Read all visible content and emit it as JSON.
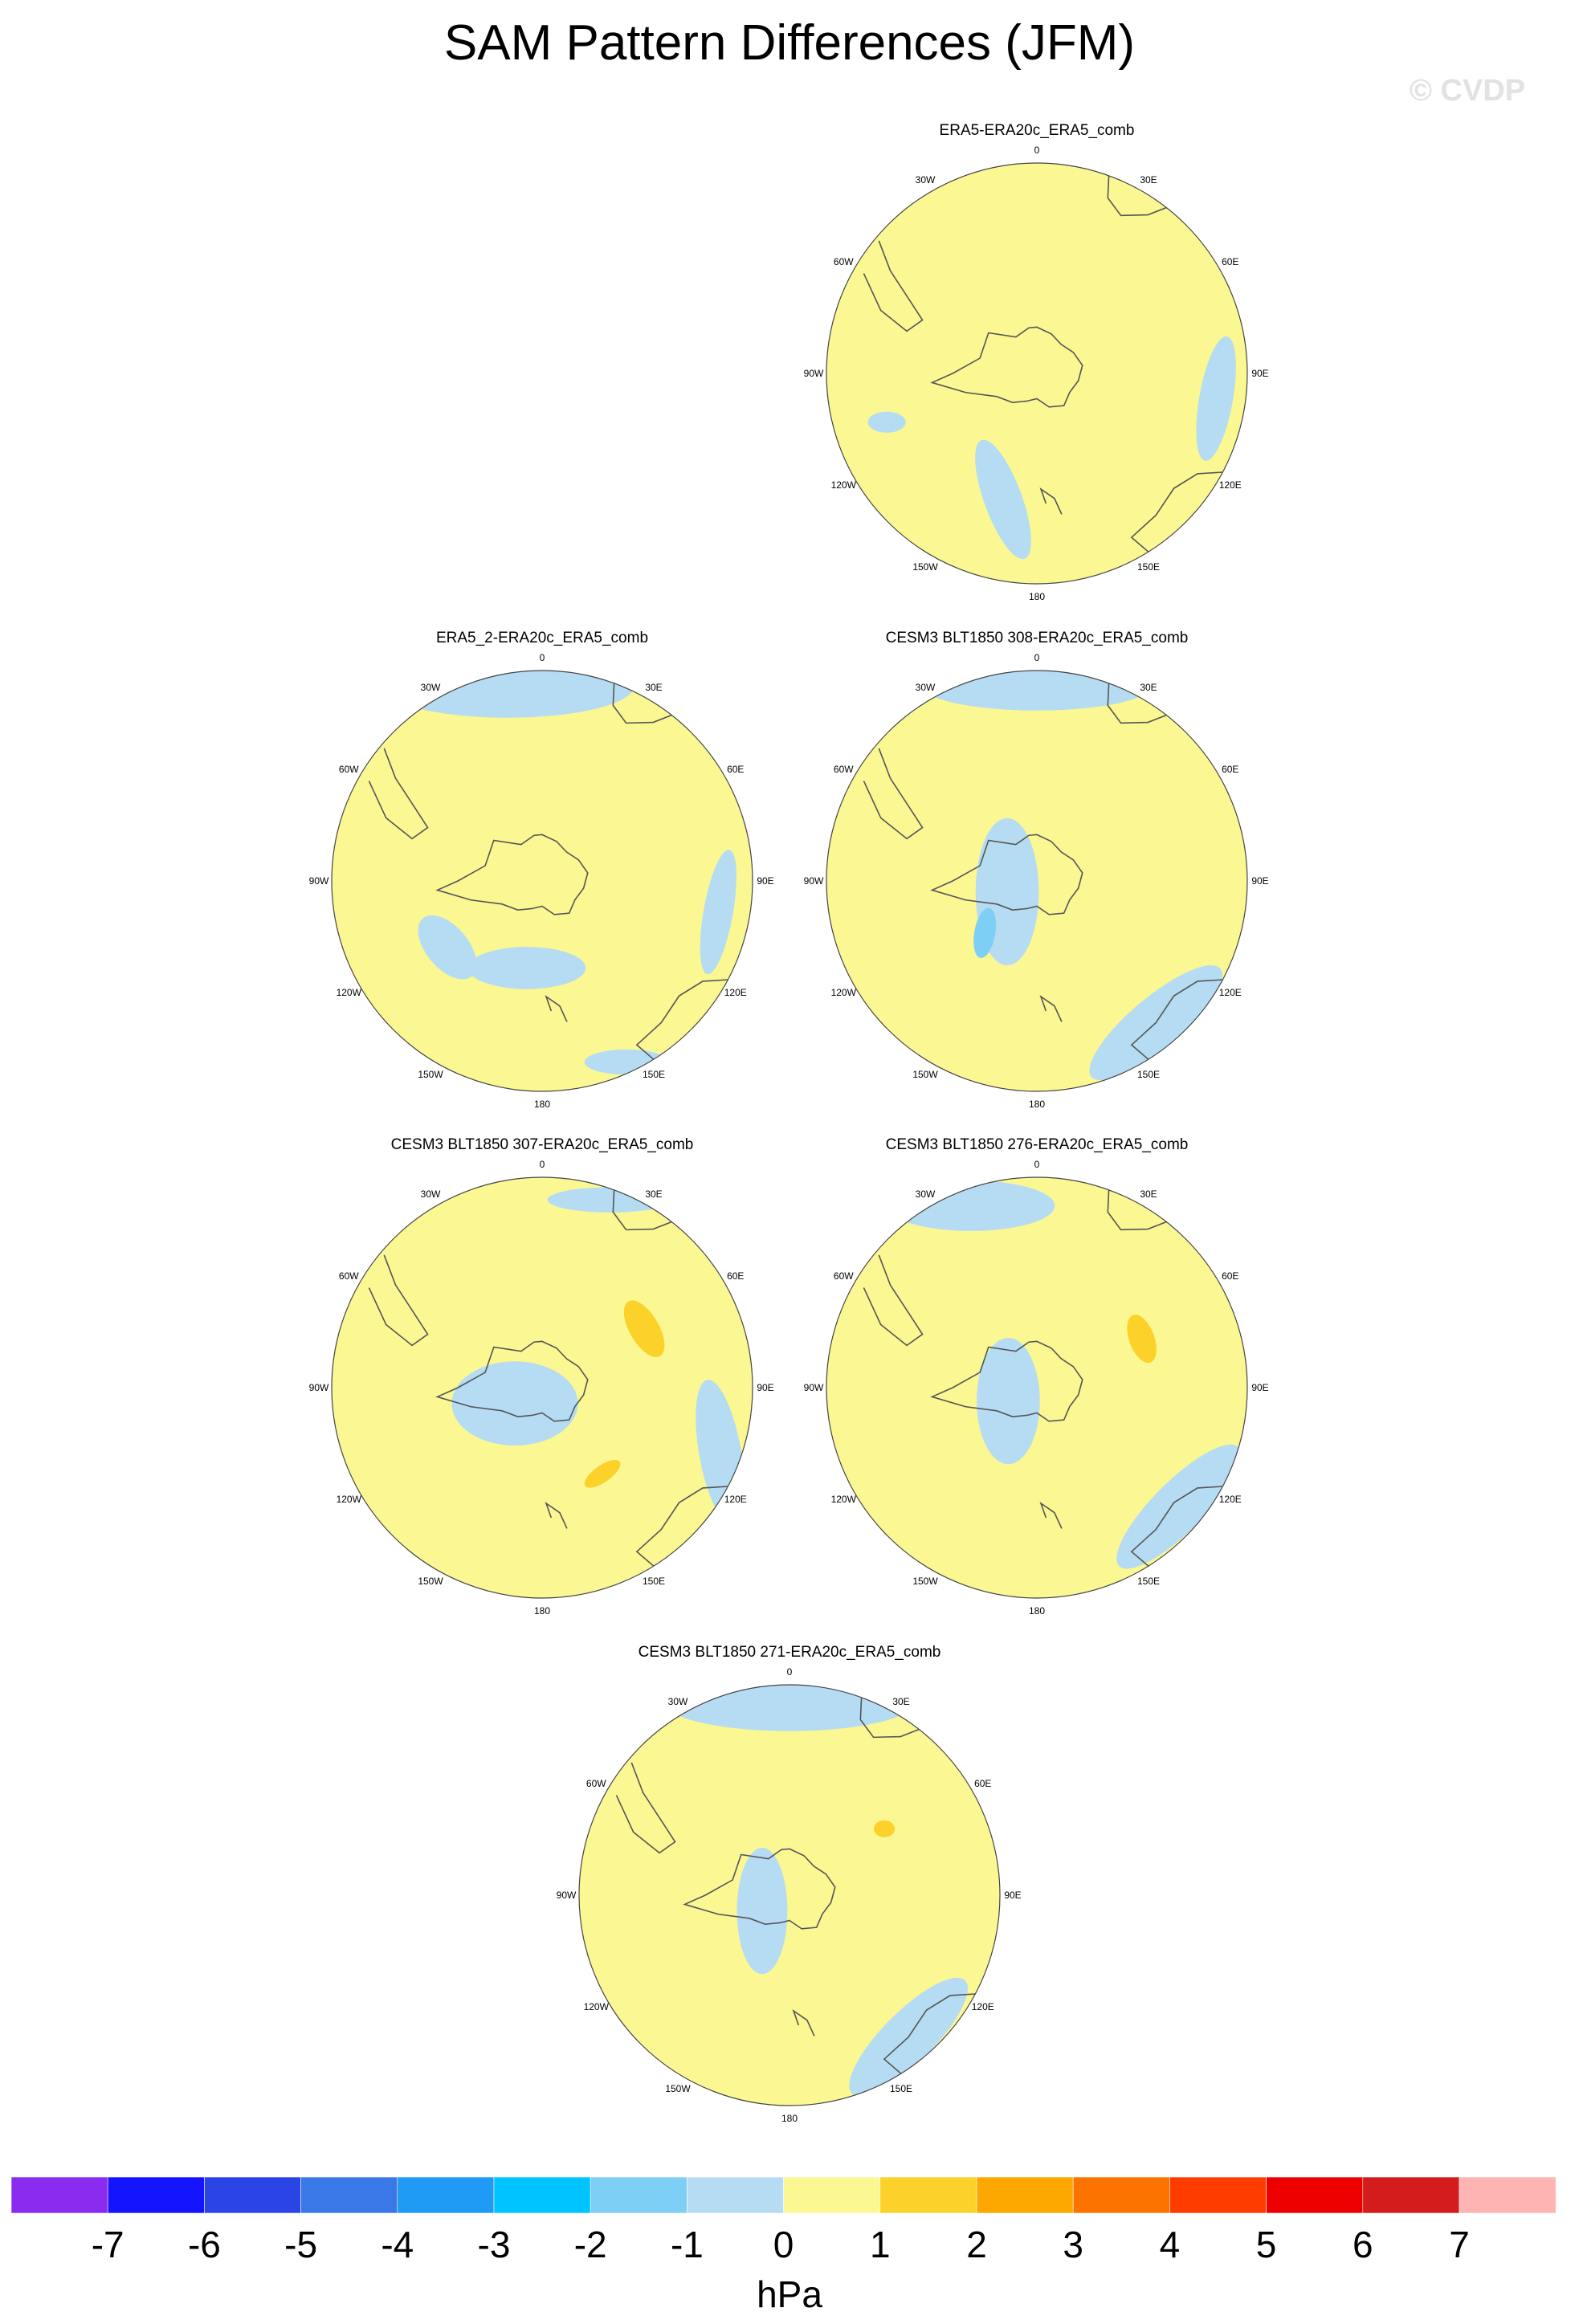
{
  "title": "SAM Pattern Differences (JFM)",
  "watermark": "© CVDP",
  "units": "hPa",
  "colors": {
    "bin_colors": [
      "#8a2bf0",
      "#1414ff",
      "#2b44e6",
      "#3a78e8",
      "#1f9af5",
      "#00c4ff",
      "#7ecff5",
      "#b5dcf2",
      "#fbf793",
      "#fcd12a",
      "#fca800",
      "#fc7300",
      "#ff3c00",
      "#ee0000",
      "#d41c1c",
      "#ffb4b4"
    ],
    "coast": "#555555",
    "frame": "#444444"
  },
  "levels": [
    "-7",
    "-6",
    "-5",
    "-4",
    "-3",
    "-2",
    "-1",
    "0",
    "1",
    "2",
    "3",
    "4",
    "5",
    "6",
    "7"
  ],
  "lon_labels": [
    "0",
    "30E",
    "60E",
    "90E",
    "120E",
    "150E",
    "180",
    "150W",
    "120W",
    "90W",
    "60W",
    "30W"
  ],
  "panels": [
    {
      "title": "ERA5-ERA20c_ERA5_comb",
      "shapes": [
        {
          "level": 1,
          "lon": 172,
          "r": 0.44,
          "rx": 0.42,
          "ry": 0.22,
          "rot": 20
        },
        {
          "level": 1,
          "lon": 62,
          "r": 0.44,
          "rx": 0.24,
          "ry": 0.13,
          "rot": -40
        },
        {
          "level": 1,
          "lon": 10,
          "r": 0.25,
          "rx": 0.32,
          "ry": 0.18,
          "rot": 0
        },
        {
          "level": 1,
          "lon": 300,
          "r": 0.55,
          "rx": 0.2,
          "ry": 0.12,
          "rot": 30
        },
        {
          "level": 0,
          "lon": 0,
          "r": 0.12,
          "rx": 0.14,
          "ry": 0.17,
          "rot": 10
        },
        {
          "level": -1,
          "lon": 195,
          "r": 0.62,
          "rx": 0.3,
          "ry": 0.09,
          "rot": 70
        },
        {
          "level": -1,
          "lon": 252,
          "r": 0.75,
          "rx": 0.09,
          "ry": 0.05,
          "rot": 0
        },
        {
          "level": -1,
          "lon": 98,
          "r": 0.86,
          "rx": 0.08,
          "ry": 0.3,
          "rot": 10
        }
      ]
    },
    {
      "title": "ERA5_2-ERA20c_ERA5_comb",
      "shapes": [
        {
          "level": 1,
          "lon": 20,
          "r": 0.08,
          "rx": 0.52,
          "ry": 0.45,
          "rot": 0
        },
        {
          "level": 0,
          "lon": 200,
          "r": 0.1,
          "rx": 0.06,
          "ry": 0.04,
          "rot": 0
        },
        {
          "level": -1,
          "lon": 350,
          "r": 0.94,
          "rx": 0.6,
          "ry": 0.15,
          "rot": 0
        },
        {
          "level": -1,
          "lon": 235,
          "r": 0.55,
          "rx": 0.18,
          "ry": 0.1,
          "rot": 50
        },
        {
          "level": -1,
          "lon": 190,
          "r": 0.42,
          "rx": 0.28,
          "ry": 0.1,
          "rot": 0
        },
        {
          "level": -1,
          "lon": 100,
          "r": 0.85,
          "rx": 0.07,
          "ry": 0.3,
          "rot": 10
        },
        {
          "level": -1,
          "lon": 155,
          "r": 0.95,
          "rx": 0.2,
          "ry": 0.06,
          "rot": 0
        }
      ]
    },
    {
      "title": "CESM3 BLT1850 308-ERA20c_ERA5_comb",
      "shapes": [
        {
          "level": 1,
          "lon": 90,
          "r": 0.55,
          "rx": 0.2,
          "ry": 0.55,
          "rot": 20
        },
        {
          "level": 1,
          "lon": 150,
          "r": 0.5,
          "rx": 0.4,
          "ry": 0.15,
          "rot": -25
        },
        {
          "level": 1,
          "lon": 320,
          "r": 0.5,
          "rx": 0.28,
          "ry": 0.14,
          "rot": 20
        },
        {
          "level": 1,
          "lon": 240,
          "r": 0.55,
          "rx": 0.13,
          "ry": 0.22,
          "rot": 0
        },
        {
          "level": -1,
          "lon": 250,
          "r": 0.15,
          "rx": 0.15,
          "ry": 0.35,
          "rot": 0
        },
        {
          "level": -2,
          "lon": 225,
          "r": 0.35,
          "rx": 0.05,
          "ry": 0.12,
          "rot": 10
        },
        {
          "level": -1,
          "lon": 0,
          "r": 0.93,
          "rx": 0.55,
          "ry": 0.12,
          "rot": 0
        },
        {
          "level": -1,
          "lon": 140,
          "r": 0.88,
          "rx": 0.4,
          "ry": 0.12,
          "rot": -40
        }
      ]
    },
    {
      "title": "CESM3 BLT1850 307-ERA20c_ERA5_comb",
      "shapes": [
        {
          "level": 1,
          "lon": 55,
          "r": 0.45,
          "rx": 0.55,
          "ry": 0.18,
          "rot": 45
        },
        {
          "level": 1,
          "lon": 150,
          "r": 0.55,
          "rx": 0.45,
          "ry": 0.16,
          "rot": -35
        },
        {
          "level": 2,
          "lon": 60,
          "r": 0.56,
          "rx": 0.15,
          "ry": 0.07,
          "rot": 60
        },
        {
          "level": 2,
          "lon": 145,
          "r": 0.5,
          "rx": 0.1,
          "ry": 0.04,
          "rot": -35
        },
        {
          "level": 1,
          "lon": 250,
          "r": 0.6,
          "rx": 0.18,
          "ry": 0.26,
          "rot": 0
        },
        {
          "level": -1,
          "lon": 240,
          "r": 0.15,
          "rx": 0.3,
          "ry": 0.2,
          "rot": 0
        },
        {
          "level": -1,
          "lon": 110,
          "r": 0.9,
          "rx": 0.1,
          "ry": 0.35,
          "rot": -10
        },
        {
          "level": -1,
          "lon": 20,
          "r": 0.95,
          "rx": 0.3,
          "ry": 0.06,
          "rot": 0
        }
      ]
    },
    {
      "title": "CESM3 BLT1850 276-ERA20c_ERA5_comb",
      "shapes": [
        {
          "level": 1,
          "lon": 75,
          "r": 0.5,
          "rx": 0.22,
          "ry": 0.55,
          "rot": 15
        },
        {
          "level": 1,
          "lon": 155,
          "r": 0.5,
          "rx": 0.45,
          "ry": 0.15,
          "rot": -30
        },
        {
          "level": 1,
          "lon": 335,
          "r": 0.5,
          "rx": 0.25,
          "ry": 0.14,
          "rot": 25
        },
        {
          "level": 1,
          "lon": 245,
          "r": 0.55,
          "rx": 0.15,
          "ry": 0.22,
          "rot": 0
        },
        {
          "level": 2,
          "lon": 65,
          "r": 0.55,
          "rx": 0.12,
          "ry": 0.06,
          "rot": 70
        },
        {
          "level": -1,
          "lon": 245,
          "r": 0.15,
          "rx": 0.15,
          "ry": 0.3,
          "rot": 0
        },
        {
          "level": -1,
          "lon": 340,
          "r": 0.92,
          "rx": 0.4,
          "ry": 0.12,
          "rot": 0
        },
        {
          "level": -1,
          "lon": 130,
          "r": 0.88,
          "rx": 0.4,
          "ry": 0.12,
          "rot": -45
        }
      ]
    },
    {
      "title": "CESM3 BLT1850 271-ERA20c_ERA5_comb",
      "shapes": [
        {
          "level": 1,
          "lon": 70,
          "r": 0.5,
          "rx": 0.2,
          "ry": 0.45,
          "rot": 10
        },
        {
          "level": 1,
          "lon": 160,
          "r": 0.45,
          "rx": 0.4,
          "ry": 0.14,
          "rot": -25
        },
        {
          "level": 1,
          "lon": 320,
          "r": 0.5,
          "rx": 0.23,
          "ry": 0.13,
          "rot": 20
        },
        {
          "level": 1,
          "lon": 245,
          "r": 0.58,
          "rx": 0.14,
          "ry": 0.14,
          "rot": 0
        },
        {
          "level": 2,
          "lon": 55,
          "r": 0.55,
          "rx": 0.05,
          "ry": 0.04,
          "rot": 0
        },
        {
          "level": -1,
          "lon": 240,
          "r": 0.15,
          "rx": 0.12,
          "ry": 0.3,
          "rot": 0
        },
        {
          "level": -1,
          "lon": 0,
          "r": 0.92,
          "rx": 0.6,
          "ry": 0.14,
          "rot": 0
        },
        {
          "level": -1,
          "lon": 140,
          "r": 0.88,
          "rx": 0.38,
          "ry": 0.12,
          "rot": -45
        }
      ]
    }
  ]
}
